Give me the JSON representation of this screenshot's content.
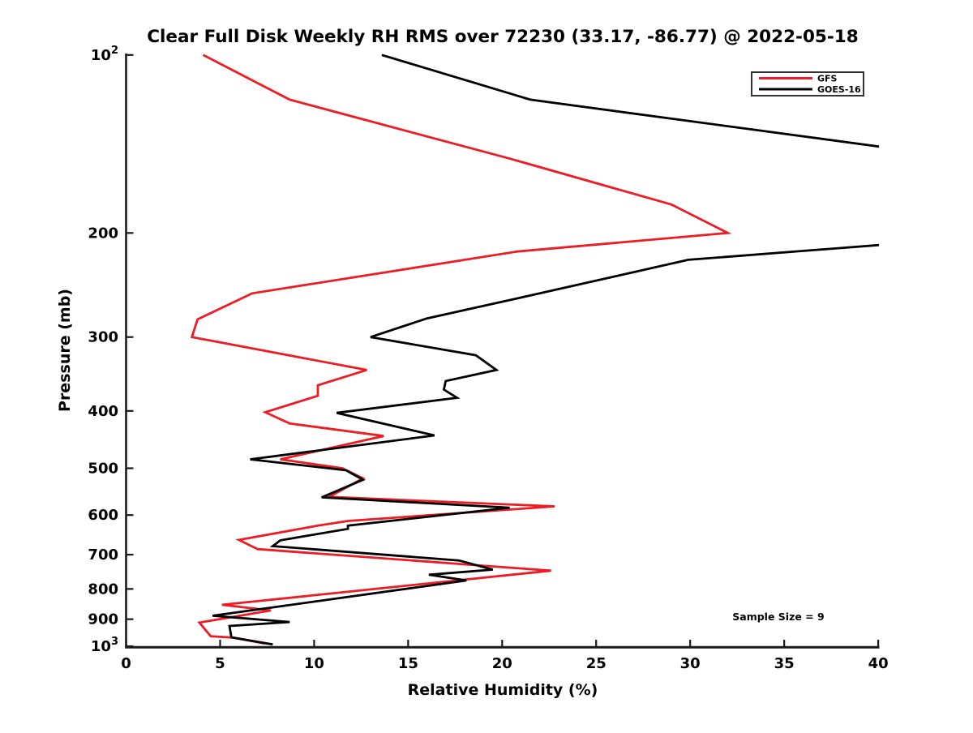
{
  "chart_data": {
    "type": "line",
    "title": "Clear Full Disk Weekly RH RMS over 72230 (33.17, -86.77) @ 2022-05-18",
    "xlabel": "Relative Humidity (%)",
    "ylabel": "Pressure (mb)",
    "annotation": "Sample Size = 9",
    "xlim": [
      0,
      40
    ],
    "x_ticks": [
      0,
      5,
      10,
      15,
      20,
      25,
      30,
      35,
      40
    ],
    "y_scale": "log",
    "y_inverted": true,
    "ylim": [
      100,
      1000
    ],
    "y_ticks": [
      {
        "value": 100,
        "label": "10^2"
      },
      {
        "value": 200,
        "label": "200"
      },
      {
        "value": 300,
        "label": "300"
      },
      {
        "value": 400,
        "label": "400"
      },
      {
        "value": 500,
        "label": "500"
      },
      {
        "value": 600,
        "label": "600"
      },
      {
        "value": 700,
        "label": "700"
      },
      {
        "value": 800,
        "label": "800"
      },
      {
        "value": 900,
        "label": "900"
      },
      {
        "value": 1000,
        "label": "10^3"
      }
    ],
    "grid": false,
    "legend_position": "top-right",
    "series": [
      {
        "name": "GFS",
        "color": "#ed1c24",
        "points_format": "[pressure_mb, rh_percent]",
        "points": [
          [
            100,
            4.1
          ],
          [
            119,
            8.7
          ],
          [
            150,
            20.5
          ],
          [
            179,
            29.0
          ],
          [
            200,
            32.0
          ],
          [
            215,
            20.8
          ],
          [
            253,
            6.7
          ],
          [
            280,
            3.8
          ],
          [
            300,
            3.5
          ],
          [
            341,
            12.8
          ],
          [
            362,
            10.2
          ],
          [
            377,
            10.2
          ],
          [
            402,
            7.4
          ],
          [
            420,
            8.7
          ],
          [
            441,
            13.7
          ],
          [
            483,
            8.2
          ],
          [
            500,
            11.5
          ],
          [
            520,
            12.6
          ],
          [
            559,
            10.8
          ],
          [
            580,
            22.8
          ],
          [
            614,
            11.8
          ],
          [
            625,
            10.2
          ],
          [
            661,
            6.0
          ],
          [
            685,
            7.0
          ],
          [
            745,
            22.6
          ],
          [
            851,
            5.1
          ],
          [
            870,
            7.7
          ],
          [
            912,
            3.9
          ],
          [
            962,
            4.5
          ],
          [
            967,
            5.7
          ],
          [
            990,
            7.4
          ]
        ]
      },
      {
        "name": "GOES-16",
        "color": "#000000",
        "points_format": "[pressure_mb, rh_percent]",
        "points": [
          [
            100,
            13.6
          ],
          [
            119,
            21.5
          ],
          [
            150,
            45.0
          ],
          [
            205,
            44.0
          ],
          [
            222,
            29.9
          ],
          [
            258,
            20.8
          ],
          [
            279,
            16.0
          ],
          [
            300,
            13.0
          ],
          [
            322,
            18.6
          ],
          [
            341,
            19.7
          ],
          [
            356,
            17.0
          ],
          [
            368,
            16.9
          ],
          [
            380,
            17.6
          ],
          [
            403,
            11.2
          ],
          [
            440,
            16.4
          ],
          [
            483,
            6.6
          ],
          [
            504,
            11.7
          ],
          [
            523,
            12.6
          ],
          [
            560,
            10.4
          ],
          [
            583,
            20.4
          ],
          [
            625,
            11.8
          ],
          [
            633,
            11.8
          ],
          [
            662,
            8.2
          ],
          [
            677,
            7.8
          ],
          [
            716,
            17.7
          ],
          [
            742,
            19.5
          ],
          [
            757,
            16.1
          ],
          [
            774,
            18.1
          ],
          [
            888,
            4.6
          ],
          [
            910,
            8.7
          ],
          [
            924,
            5.5
          ],
          [
            966,
            5.6
          ],
          [
            993,
            7.8
          ]
        ]
      }
    ],
    "colors": {
      "axis": "#1a1a1a",
      "text": "#000000",
      "background": "#ffffff",
      "legend_border": "#333333"
    }
  }
}
